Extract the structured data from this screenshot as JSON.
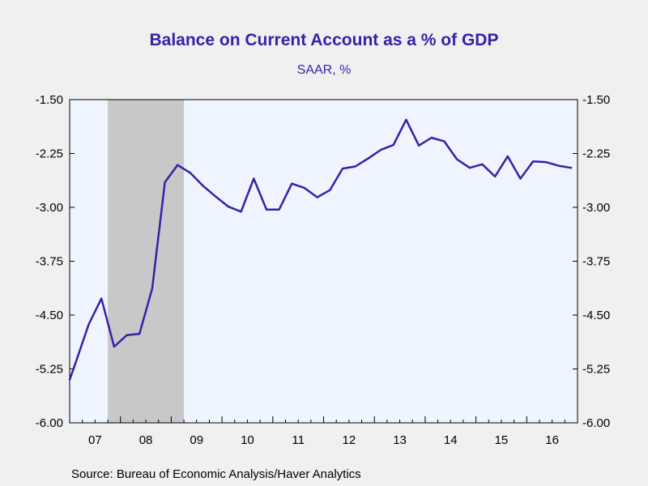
{
  "title": "Balance on Current Account as a % of GDP",
  "subtitle": "SAAR, %",
  "source": "Source:  Bureau of Economic Analysis/Haver Analytics",
  "colors": {
    "line": "#3a1fa8",
    "plot_bg": "#eef5ff",
    "recession": "#c8c8c8",
    "page_bg": "#f0f0f0"
  },
  "chart_data": {
    "type": "line",
    "title": "Balance on Current Account as a % of GDP",
    "subtitle": "SAAR, %",
    "xlabel": "",
    "ylabel": "",
    "ylim": [
      -6.0,
      -1.5
    ],
    "y_ticks": [
      "-1.50",
      "-2.25",
      "-3.00",
      "-3.75",
      "-4.50",
      "-5.25",
      "-6.00"
    ],
    "y_tick_values": [
      -1.5,
      -2.25,
      -3.0,
      -3.75,
      -4.5,
      -5.25,
      -6.0
    ],
    "x_range": [
      2007.0,
      2017.0
    ],
    "x_tick_labels": [
      "07",
      "08",
      "09",
      "10",
      "11",
      "12",
      "13",
      "14",
      "15",
      "16"
    ],
    "grid": false,
    "recession": {
      "start": 2007.75,
      "end": 2009.25
    },
    "series": [
      {
        "x": [
          2007.0,
          2007.125,
          2007.375,
          2007.625,
          2007.875,
          2008.125,
          2008.375,
          2008.625,
          2008.875,
          2009.125,
          2009.375,
          2009.625,
          2009.875,
          2010.125,
          2010.375,
          2010.625,
          2010.875,
          2011.125,
          2011.375,
          2011.625,
          2011.875,
          2012.125,
          2012.375,
          2012.625,
          2012.875,
          2013.125,
          2013.375,
          2013.625,
          2013.875,
          2014.125,
          2014.375,
          2014.625,
          2014.875,
          2015.125,
          2015.375,
          2015.625,
          2015.875,
          2016.125,
          2016.375,
          2016.625,
          2016.875
        ],
        "values": [
          -5.4,
          -5.15,
          -4.63,
          -4.27,
          -4.94,
          -4.78,
          -4.76,
          -4.13,
          -2.65,
          -2.41,
          -2.52,
          -2.7,
          -2.85,
          -2.99,
          -3.06,
          -2.6,
          -3.03,
          -3.03,
          -2.67,
          -2.73,
          -2.86,
          -2.76,
          -2.46,
          -2.43,
          -2.32,
          -2.2,
          -2.13,
          -1.78,
          -2.14,
          -2.03,
          -2.08,
          -2.33,
          -2.45,
          -2.4,
          -2.57,
          -2.29,
          -2.6,
          -2.36,
          -2.37,
          -2.42,
          -2.45
        ]
      }
    ]
  }
}
